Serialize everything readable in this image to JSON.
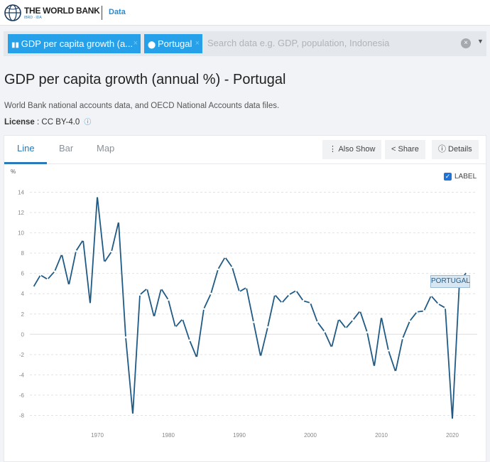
{
  "header": {
    "brand": "THE WORLD BANK",
    "brand_sub": "IBRD · IDA",
    "data_link": "Data"
  },
  "search": {
    "chip_indicator": "GDP per capita growth (a...",
    "chip_country": "Portugal",
    "chip_close": "×",
    "placeholder": "Search data e.g. GDP, population, Indonesia",
    "clear": "×",
    "caret": "▼"
  },
  "page": {
    "title": "GDP per capita growth (annual %) - Portugal",
    "source": "World Bank national accounts data, and OECD National Accounts data files.",
    "license_label": "License",
    "license_value": ": CC BY-4.0",
    "info": "ⓘ"
  },
  "tabs": [
    {
      "label": "Line"
    },
    {
      "label": "Bar"
    },
    {
      "label": "Map"
    }
  ],
  "buttons": {
    "also_show": "⋮  Also Show",
    "share": "<  Share",
    "details": "ⓘ  Details"
  },
  "label_toggle": {
    "checked": true,
    "label": "LABEL"
  },
  "accent": "#2a7ab8",
  "line_color": "#1f5a85",
  "chart_data": {
    "type": "line",
    "title": "GDP per capita growth (annual %) - Portugal",
    "ylabel": "%",
    "xlabel": "",
    "ylim": [
      -9,
      14.5
    ],
    "yticks": [
      14,
      12,
      10,
      8,
      6,
      4,
      2,
      0,
      -2,
      -4,
      -6,
      -8
    ],
    "xticks": [
      1970,
      1980,
      1990,
      2000,
      2010,
      2020
    ],
    "grid": true,
    "series": [
      {
        "name": "PORTUGAL",
        "x": [
          1961,
          1962,
          1963,
          1964,
          1965,
          1966,
          1967,
          1968,
          1969,
          1970,
          1971,
          1972,
          1973,
          1974,
          1975,
          1976,
          1977,
          1978,
          1979,
          1980,
          1981,
          1982,
          1983,
          1984,
          1985,
          1986,
          1987,
          1988,
          1989,
          1990,
          1991,
          1992,
          1993,
          1994,
          1995,
          1996,
          1997,
          1998,
          1999,
          2000,
          2001,
          2002,
          2003,
          2004,
          2005,
          2006,
          2007,
          2008,
          2009,
          2010,
          2011,
          2012,
          2013,
          2014,
          2015,
          2016,
          2017,
          2018,
          2019,
          2020,
          2021,
          2022
        ],
        "values": [
          4.65,
          5.84,
          5.42,
          6.2,
          7.9,
          4.84,
          8.2,
          9.3,
          3.0,
          13.6,
          7.1,
          8.15,
          11.1,
          -0.3,
          -7.9,
          3.9,
          4.5,
          1.7,
          4.5,
          3.4,
          0.7,
          1.5,
          -0.6,
          -2.3,
          2.5,
          4.0,
          6.4,
          7.6,
          6.6,
          4.2,
          4.6,
          1.2,
          -2.2,
          0.7,
          3.9,
          3.1,
          3.9,
          4.3,
          3.3,
          3.1,
          1.2,
          0.26,
          -1.3,
          1.5,
          0.6,
          1.4,
          2.3,
          0.2,
          -3.2,
          1.7,
          -1.6,
          -3.7,
          -0.4,
          1.3,
          2.2,
          2.3,
          3.8,
          3.0,
          2.6,
          -8.4,
          5.2,
          6.1
        ]
      }
    ]
  }
}
